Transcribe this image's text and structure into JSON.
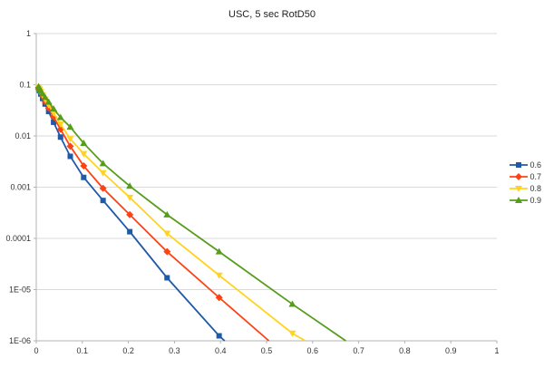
{
  "chart_data": {
    "type": "line",
    "title": "USC, 5 sec RotD50",
    "x_axis": {
      "min": 0,
      "max": 1,
      "scale": "linear",
      "ticks": [
        "0",
        "0.1",
        "0.2",
        "0.3",
        "0.4",
        "0.5",
        "0.6",
        "0.7",
        "0.8",
        "0.9",
        "1"
      ],
      "tick_values": [
        0,
        0.1,
        0.2,
        0.3,
        0.4,
        0.5,
        0.6,
        0.7,
        0.8,
        0.9,
        1
      ]
    },
    "y_axis": {
      "min": 1e-06,
      "max": 1,
      "scale": "log",
      "ticks": [
        "1",
        "0.1",
        "0.01",
        "0.001",
        "0.0001",
        "1E-05",
        "1E-06"
      ],
      "tick_values": [
        1,
        0.1,
        0.01,
        0.001,
        0.0001,
        1e-05,
        1e-06
      ]
    },
    "grid": "horizontal-major",
    "legend_position": "right",
    "colors": {
      "grid": "#d9d9d9",
      "axis": "#b3b3b3",
      "text": "#333333",
      "title": "#222222"
    },
    "series": [
      {
        "name": "0.6",
        "color": "#1f5aa8",
        "marker": "square",
        "points": [
          [
            0.005,
            0.085
          ],
          [
            0.007,
            0.077
          ],
          [
            0.0098,
            0.066
          ],
          [
            0.0137,
            0.054
          ],
          [
            0.0192,
            0.042
          ],
          [
            0.0269,
            0.03
          ],
          [
            0.0376,
            0.0185
          ],
          [
            0.0527,
            0.0095
          ],
          [
            0.0738,
            0.004
          ],
          [
            0.103,
            0.00155
          ],
          [
            0.145,
            0.00055
          ],
          [
            0.203,
            0.000135
          ],
          [
            0.284,
            1.7e-05
          ],
          [
            0.397,
            1.25e-06
          ]
        ],
        "end": [
          0.409,
          1e-06
        ]
      },
      {
        "name": "0.7",
        "color": "#ff4214",
        "marker": "diamond",
        "points": [
          [
            0.005,
            0.088
          ],
          [
            0.007,
            0.08
          ],
          [
            0.0098,
            0.07
          ],
          [
            0.0137,
            0.059
          ],
          [
            0.0192,
            0.047
          ],
          [
            0.0269,
            0.035
          ],
          [
            0.0376,
            0.0235
          ],
          [
            0.0527,
            0.0135
          ],
          [
            0.0738,
            0.0063
          ],
          [
            0.103,
            0.0026
          ],
          [
            0.145,
            0.00095
          ],
          [
            0.203,
            0.00029
          ],
          [
            0.284,
            5.5e-05
          ],
          [
            0.397,
            7e-06
          ]
        ],
        "end": [
          0.505,
          1e-06
        ]
      },
      {
        "name": "0.8",
        "color": "#ffd320",
        "marker": "triangle-down",
        "points": [
          [
            0.005,
            0.09
          ],
          [
            0.007,
            0.082
          ],
          [
            0.0098,
            0.073
          ],
          [
            0.0137,
            0.063
          ],
          [
            0.0192,
            0.052
          ],
          [
            0.0269,
            0.04
          ],
          [
            0.0376,
            0.028
          ],
          [
            0.0527,
            0.017
          ],
          [
            0.0738,
            0.0088
          ],
          [
            0.103,
            0.0045
          ],
          [
            0.145,
            0.0019
          ],
          [
            0.203,
            0.00063
          ],
          [
            0.284,
            0.000125
          ],
          [
            0.397,
            1.9e-05
          ],
          [
            0.556,
            1.4e-06
          ]
        ],
        "end": [
          0.584,
          1e-06
        ]
      },
      {
        "name": "0.9",
        "color": "#579d1c",
        "marker": "triangle-up",
        "points": [
          [
            0.005,
            0.092
          ],
          [
            0.007,
            0.085
          ],
          [
            0.0098,
            0.076
          ],
          [
            0.0137,
            0.067
          ],
          [
            0.0192,
            0.057
          ],
          [
            0.0269,
            0.046
          ],
          [
            0.0376,
            0.034
          ],
          [
            0.0527,
            0.023
          ],
          [
            0.0738,
            0.015
          ],
          [
            0.103,
            0.0072
          ],
          [
            0.145,
            0.0029
          ],
          [
            0.203,
            0.00105
          ],
          [
            0.284,
            0.00029
          ],
          [
            0.397,
            5.5e-05
          ],
          [
            0.556,
            5.2e-06
          ]
        ],
        "end": [
          0.672,
          1e-06
        ]
      }
    ]
  }
}
